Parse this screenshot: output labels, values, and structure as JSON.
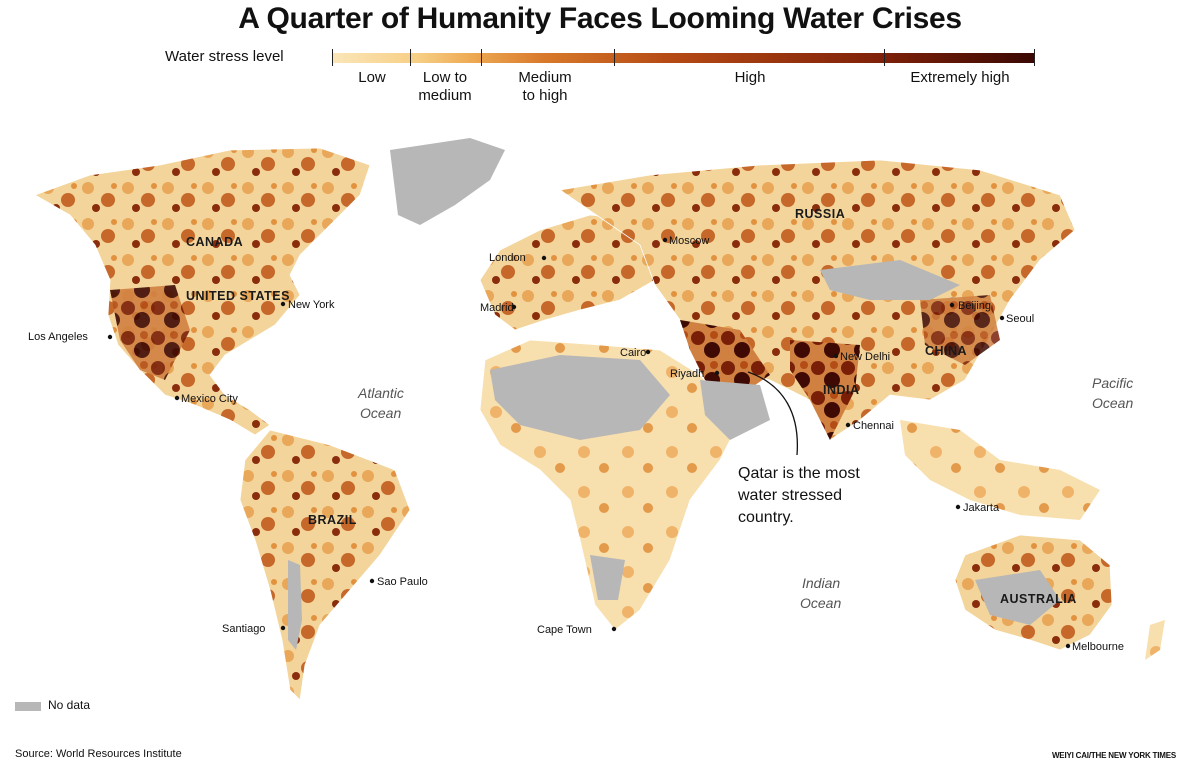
{
  "title": "A Quarter of Humanity Faces Looming Water Crises",
  "legend": {
    "label": "Water stress level",
    "categories": [
      {
        "label_1": "Low",
        "label_2": ""
      },
      {
        "label_1": "Low to",
        "label_2": "medium"
      },
      {
        "label_1": "Medium",
        "label_2": "to high"
      },
      {
        "label_1": "High",
        "label_2": ""
      },
      {
        "label_1": "Extremely high",
        "label_2": ""
      }
    ],
    "colors": [
      "#f6d08d",
      "#eeaa55",
      "#d5782c",
      "#a9410f",
      "#3a0803"
    ],
    "no_data_color": "#b7b7b7",
    "no_data_label": "No data"
  },
  "map": {
    "countries": [
      "CANADA",
      "UNITED STATES",
      "BRAZIL",
      "RUSSIA",
      "CHINA",
      "INDIA",
      "AUSTRALIA"
    ],
    "cities": [
      "Los Angeles",
      "New York",
      "Mexico City",
      "London",
      "Moscow",
      "Madrid",
      "Cairo",
      "Riyadh",
      "New Delhi",
      "Beijing",
      "Seoul",
      "Chennai",
      "Jakarta",
      "Sao Paulo",
      "Santiago",
      "Cape Town",
      "Melbourne"
    ],
    "oceans": [
      "Atlantic",
      "Ocean",
      "Pacific",
      "Ocean",
      "Indian",
      "Ocean"
    ],
    "annotation": [
      "Qatar is the most",
      "water stressed",
      "country."
    ]
  },
  "footer": {
    "source": "Source: World Resources Institute",
    "credit": "WEIYI CAI/THE NEW YORK TIMES"
  }
}
